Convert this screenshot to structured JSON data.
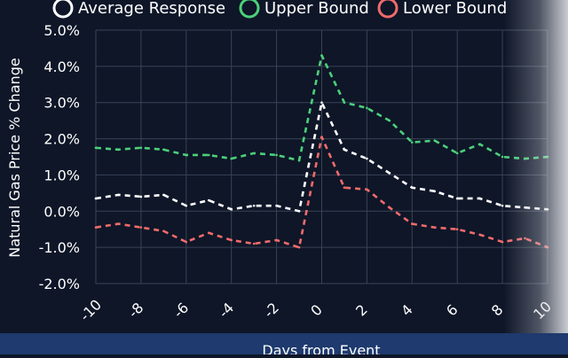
{
  "chart_data": {
    "type": "line",
    "xlabel": "Days from Event",
    "ylabel": "Natural Gas Price % Change",
    "x": [
      -10,
      -9,
      -8,
      -7,
      -6,
      -5,
      -4,
      -3,
      -2,
      -1,
      0,
      1,
      2,
      3,
      4,
      5,
      6,
      7,
      8,
      9,
      10
    ],
    "xlim": [
      -10,
      10
    ],
    "ylim": [
      -2.0,
      5.0
    ],
    "x_ticks": [
      -10,
      -8,
      -6,
      -4,
      -2,
      0,
      2,
      4,
      6,
      8,
      10
    ],
    "y_ticks": [
      "-2.0%",
      "-1.0%",
      "0.0%",
      "1.0%",
      "2.0%",
      "3.0%",
      "4.0%",
      "5.0%"
    ],
    "grid": true,
    "legend_position": "top",
    "series": [
      {
        "name": "Average Response",
        "color": "#ffffff",
        "style": "dashed",
        "values": [
          0.35,
          0.45,
          0.4,
          0.45,
          0.15,
          0.3,
          0.05,
          0.15,
          0.15,
          0.0,
          3.0,
          1.7,
          1.45,
          1.05,
          0.65,
          0.55,
          0.35,
          0.35,
          0.15,
          0.1,
          0.05
        ]
      },
      {
        "name": "Upper Bound",
        "color": "#4cd07a",
        "style": "dashed",
        "values": [
          1.75,
          1.7,
          1.75,
          1.7,
          1.55,
          1.55,
          1.45,
          1.6,
          1.55,
          1.4,
          4.3,
          3.0,
          2.85,
          2.5,
          1.9,
          1.95,
          1.6,
          1.85,
          1.5,
          1.45,
          1.5
        ]
      },
      {
        "name": "Lower Bound",
        "color": "#f06b6b",
        "style": "dashed",
        "values": [
          -0.45,
          -0.35,
          -0.45,
          -0.55,
          -0.85,
          -0.6,
          -0.8,
          -0.9,
          -0.8,
          -1.0,
          2.05,
          0.65,
          0.6,
          0.1,
          -0.35,
          -0.45,
          -0.5,
          -0.65,
          -0.85,
          -0.75,
          -1.0
        ]
      }
    ]
  }
}
